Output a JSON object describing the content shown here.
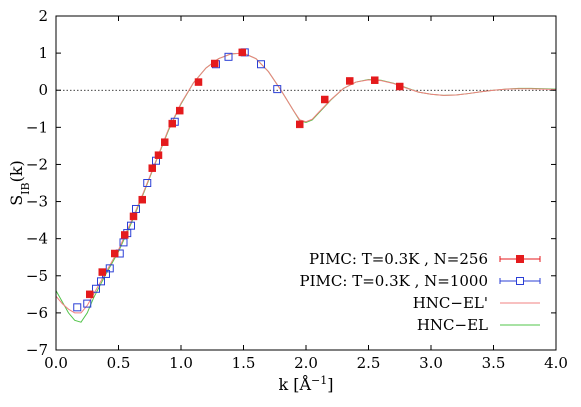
{
  "chart_data": {
    "type": "scatter",
    "title": "",
    "xlabel_main": "k [Å",
    "xlabel_sup": "−1",
    "xlabel_end": "]",
    "ylabel_main": "S",
    "ylabel_sub": "IB",
    "ylabel_end": "(k)",
    "xlim": [
      0.0,
      4.0
    ],
    "ylim": [
      -7,
      2
    ],
    "x_ticks": [
      0.0,
      0.5,
      1.0,
      1.5,
      2.0,
      2.5,
      3.0,
      3.5,
      4.0
    ],
    "x_tick_labels": [
      "0.0",
      "0.5",
      "1.0",
      "1.5",
      "2.0",
      "2.5",
      "3.0",
      "3.5",
      "4.0"
    ],
    "y_ticks": [
      -7,
      -6,
      -5,
      -4,
      -3,
      -2,
      -1,
      0,
      1,
      2
    ],
    "y_tick_labels": [
      "−7",
      "−6",
      "−5",
      "−4",
      "−3",
      "−2",
      "−1",
      "0",
      "1",
      "2"
    ],
    "zero_line": true,
    "legend_position": "bottom-right",
    "colors": {
      "pimc256": "#e41a1c",
      "pimc1000": "#2b3fd6",
      "hnc_el_prime": "#f08080",
      "hnc_el": "#52c44a"
    },
    "series": [
      {
        "name": "PIMC: T=0.3K , N=256",
        "kind": "filled-square",
        "points": [
          [
            0.27,
            -5.5
          ],
          [
            0.37,
            -4.9
          ],
          [
            0.47,
            -4.4
          ],
          [
            0.55,
            -3.9
          ],
          [
            0.62,
            -3.4
          ],
          [
            0.69,
            -2.95
          ],
          [
            0.77,
            -2.1
          ],
          [
            0.82,
            -1.75
          ],
          [
            0.87,
            -1.4
          ],
          [
            0.93,
            -0.9
          ],
          [
            0.99,
            -0.55
          ],
          [
            1.14,
            0.22
          ],
          [
            1.27,
            0.72
          ],
          [
            1.49,
            1.02
          ],
          [
            1.95,
            -0.92
          ],
          [
            2.15,
            -0.25
          ],
          [
            2.35,
            0.25
          ],
          [
            2.55,
            0.27
          ],
          [
            2.75,
            0.1
          ]
        ]
      },
      {
        "name": "PIMC: T=0.3K , N=1000",
        "kind": "open-square",
        "points": [
          [
            0.17,
            -5.85
          ],
          [
            0.25,
            -5.75
          ],
          [
            0.32,
            -5.35
          ],
          [
            0.36,
            -5.15
          ],
          [
            0.4,
            -4.95
          ],
          [
            0.43,
            -4.8
          ],
          [
            0.51,
            -4.4
          ],
          [
            0.54,
            -4.1
          ],
          [
            0.57,
            -3.85
          ],
          [
            0.6,
            -3.65
          ],
          [
            0.64,
            -3.2
          ],
          [
            0.73,
            -2.5
          ],
          [
            0.8,
            -1.9
          ],
          [
            0.95,
            -0.85
          ],
          [
            1.28,
            0.7
          ],
          [
            1.38,
            0.9
          ],
          [
            1.51,
            1.02
          ],
          [
            1.64,
            0.7
          ],
          [
            1.77,
            0.03
          ]
        ]
      },
      {
        "name": "HNC−EL'",
        "kind": "line",
        "points": [
          [
            0.0,
            -5.55
          ],
          [
            0.05,
            -5.75
          ],
          [
            0.1,
            -5.9
          ],
          [
            0.15,
            -6.0
          ],
          [
            0.2,
            -6.0
          ],
          [
            0.25,
            -5.8
          ],
          [
            0.3,
            -5.5
          ],
          [
            0.4,
            -4.9
          ],
          [
            0.5,
            -4.3
          ],
          [
            0.6,
            -3.55
          ],
          [
            0.7,
            -2.75
          ],
          [
            0.8,
            -1.9
          ],
          [
            0.9,
            -1.05
          ],
          [
            1.0,
            -0.35
          ],
          [
            1.1,
            0.2
          ],
          [
            1.2,
            0.6
          ],
          [
            1.3,
            0.85
          ],
          [
            1.4,
            0.98
          ],
          [
            1.5,
            1.0
          ],
          [
            1.6,
            0.85
          ],
          [
            1.7,
            0.5
          ],
          [
            1.8,
            0.0
          ],
          [
            1.9,
            -0.55
          ],
          [
            1.95,
            -0.8
          ],
          [
            2.0,
            -0.85
          ],
          [
            2.05,
            -0.78
          ],
          [
            2.1,
            -0.6
          ],
          [
            2.2,
            -0.25
          ],
          [
            2.3,
            0.05
          ],
          [
            2.4,
            0.22
          ],
          [
            2.5,
            0.28
          ],
          [
            2.6,
            0.26
          ],
          [
            2.7,
            0.18
          ],
          [
            2.8,
            0.06
          ],
          [
            2.9,
            -0.05
          ],
          [
            3.0,
            -0.11
          ],
          [
            3.1,
            -0.14
          ],
          [
            3.2,
            -0.13
          ],
          [
            3.3,
            -0.09
          ],
          [
            3.4,
            -0.04
          ],
          [
            3.5,
            0.0
          ],
          [
            3.6,
            0.03
          ],
          [
            3.7,
            0.04
          ],
          [
            3.8,
            0.04
          ],
          [
            3.9,
            0.03
          ],
          [
            4.0,
            0.02
          ]
        ]
      },
      {
        "name": "HNC−EL",
        "kind": "line",
        "points": [
          [
            0.0,
            -5.4
          ],
          [
            0.05,
            -5.7
          ],
          [
            0.1,
            -6.0
          ],
          [
            0.15,
            -6.2
          ],
          [
            0.2,
            -6.25
          ],
          [
            0.25,
            -6.0
          ],
          [
            0.3,
            -5.6
          ],
          [
            0.4,
            -4.95
          ],
          [
            0.5,
            -4.35
          ],
          [
            0.6,
            -3.6
          ],
          [
            0.7,
            -2.78
          ],
          [
            0.8,
            -1.92
          ],
          [
            0.9,
            -1.08
          ],
          [
            1.0,
            -0.37
          ],
          [
            1.1,
            0.2
          ],
          [
            1.2,
            0.6
          ],
          [
            1.3,
            0.85
          ],
          [
            1.4,
            0.98
          ],
          [
            1.5,
            1.0
          ],
          [
            1.6,
            0.85
          ],
          [
            1.7,
            0.5
          ],
          [
            1.8,
            0.0
          ],
          [
            1.9,
            -0.55
          ],
          [
            1.95,
            -0.82
          ],
          [
            2.0,
            -0.87
          ],
          [
            2.05,
            -0.8
          ],
          [
            2.1,
            -0.62
          ],
          [
            2.2,
            -0.26
          ],
          [
            2.3,
            0.05
          ],
          [
            2.4,
            0.22
          ],
          [
            2.5,
            0.29
          ],
          [
            2.6,
            0.27
          ],
          [
            2.7,
            0.19
          ],
          [
            2.8,
            0.07
          ],
          [
            2.9,
            -0.05
          ],
          [
            3.0,
            -0.11
          ],
          [
            3.1,
            -0.14
          ],
          [
            3.2,
            -0.13
          ],
          [
            3.3,
            -0.09
          ],
          [
            3.4,
            -0.04
          ],
          [
            3.5,
            0.0
          ],
          [
            3.6,
            0.03
          ],
          [
            3.7,
            0.05
          ],
          [
            3.8,
            0.05
          ],
          [
            3.9,
            0.04
          ],
          [
            4.0,
            0.03
          ]
        ]
      }
    ]
  }
}
